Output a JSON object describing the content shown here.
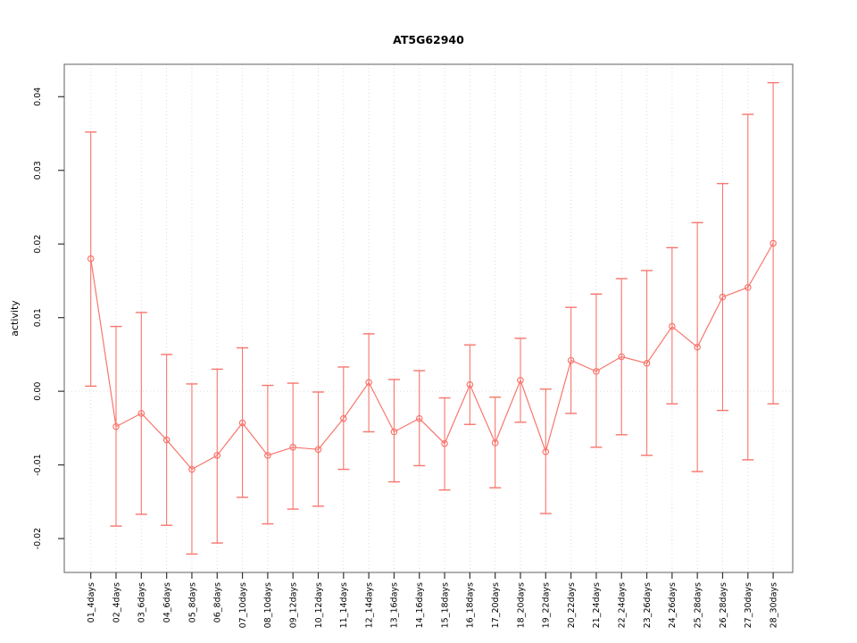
{
  "figure": {
    "title": "AT5G62940"
  },
  "chart_data": {
    "type": "line",
    "title": "AT5G62940",
    "xlabel": "",
    "ylabel": "activity",
    "legend": "none",
    "grid": "vertical dotted gridlines at each category; dotted horizontal line at y=0",
    "marker": "open-circle",
    "error_bars": true,
    "categories": [
      "01_4days",
      "02_4days",
      "03_6days",
      "04_6days",
      "05_8days",
      "06_8days",
      "07_10days",
      "08_10days",
      "09_12days",
      "10_12days",
      "11_14days",
      "12_14days",
      "13_16days",
      "14_16days",
      "15_18days",
      "16_18days",
      "17_20days",
      "18_20days",
      "19_22days",
      "20_22days",
      "21_24days",
      "22_24days",
      "23_26days",
      "24_26days",
      "25_28days",
      "26_28days",
      "27_30days",
      "28_30days"
    ],
    "series": [
      {
        "name": "activity",
        "values": [
          0.018,
          -0.0048,
          -0.003,
          -0.0066,
          -0.0106,
          -0.0087,
          -0.0043,
          -0.0087,
          -0.0076,
          -0.0079,
          -0.0037,
          0.0012,
          -0.0055,
          -0.0037,
          -0.0071,
          0.0009,
          -0.007,
          0.0015,
          -0.0082,
          0.0042,
          0.0027,
          0.0047,
          0.0038,
          0.0088,
          0.006,
          0.0128,
          0.0141,
          0.0201
        ]
      }
    ],
    "error_upper": [
      0.0352,
      0.0088,
      0.0107,
      0.005,
      0.001,
      0.003,
      0.0059,
      0.0008,
      0.0011,
      -0.0001,
      0.0033,
      0.0078,
      0.0016,
      0.0028,
      -0.0009,
      0.0063,
      -0.0008,
      0.0072,
      0.0003,
      0.0114,
      0.0132,
      0.0153,
      0.0164,
      0.0195,
      0.0229,
      0.0282,
      0.0376,
      0.0419
    ],
    "error_lower": [
      0.0007,
      -0.0183,
      -0.0167,
      -0.0182,
      -0.0221,
      -0.0206,
      -0.0144,
      -0.018,
      -0.016,
      -0.0156,
      -0.0106,
      -0.0055,
      -0.0123,
      -0.0101,
      -0.0134,
      -0.0045,
      -0.0131,
      -0.0042,
      -0.0166,
      -0.003,
      -0.0076,
      -0.0059,
      -0.0087,
      -0.0017,
      -0.0109,
      -0.0026,
      -0.0093,
      -0.0017
    ],
    "yticks": [
      -0.02,
      -0.01,
      0.0,
      0.01,
      0.02,
      0.03,
      0.04
    ],
    "ylim": [
      -0.0246,
      0.0444
    ],
    "colors": {
      "series": "#F8766D",
      "grid": "#DBDBDB",
      "zero_line": "#DBDBDB",
      "box": "#7A7A7A",
      "tick": "#333333",
      "text": "#000000",
      "background": "#FFFFFF"
    }
  }
}
